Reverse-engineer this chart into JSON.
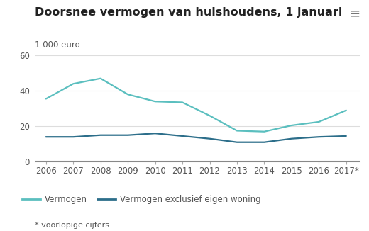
{
  "title": "Doorsnee vermogen van huishoudens, 1 januari",
  "ylabel": "1 000 euro",
  "years": [
    2006,
    2007,
    2008,
    2009,
    2010,
    2011,
    2012,
    2013,
    2014,
    2015,
    2016,
    2017
  ],
  "vermogen": [
    35.5,
    44.0,
    47.0,
    38.0,
    34.0,
    33.5,
    26.0,
    17.5,
    17.0,
    20.5,
    22.5,
    29.0
  ],
  "vermogen_excl": [
    14.0,
    14.0,
    15.0,
    15.0,
    16.0,
    14.5,
    13.0,
    11.0,
    11.0,
    13.0,
    14.0,
    14.5
  ],
  "color_vermogen": "#5bbfbf",
  "color_excl": "#2c6e8a",
  "ylim": [
    0,
    60
  ],
  "yticks": [
    0,
    20,
    40,
    60
  ],
  "bg_color": "#ffffff",
  "grey_bar_color": "#e8e8e8",
  "plot_bg": "#ffffff",
  "grid_color": "#dddddd",
  "tick_color": "#aaaaaa",
  "text_color": "#555555",
  "title_color": "#222222",
  "legend_label_1": "Vermogen",
  "legend_label_2": "Vermogen exclusief eigen woning",
  "footnote": "* voorlopige cijfers",
  "xlabel_last": "2017*",
  "title_fontsize": 11.5,
  "axis_fontsize": 8.5,
  "legend_fontsize": 8.5,
  "footnote_fontsize": 8.0
}
